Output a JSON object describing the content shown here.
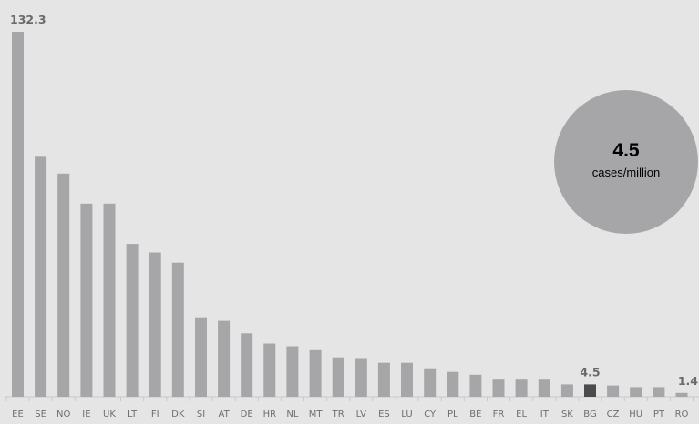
{
  "chart_data": {
    "type": "bar",
    "categories": [
      "EE",
      "SE",
      "NO",
      "IE",
      "UK",
      "LT",
      "FI",
      "DK",
      "SI",
      "AT",
      "DE",
      "HR",
      "NL",
      "MT",
      "TR",
      "LV",
      "ES",
      "LU",
      "CY",
      "PL",
      "BE",
      "FR",
      "EL",
      "IT",
      "SK",
      "BG",
      "CZ",
      "HU",
      "PT",
      "RO"
    ],
    "values": [
      132.3,
      87.0,
      80.9,
      70.0,
      70.0,
      55.4,
      52.3,
      48.6,
      28.8,
      27.5,
      23.0,
      19.3,
      18.3,
      16.9,
      14.3,
      13.7,
      12.3,
      12.3,
      10.0,
      9.0,
      8.0,
      6.2,
      6.2,
      6.2,
      4.5,
      4.5,
      4.1,
      3.5,
      3.5,
      1.4
    ],
    "highlight": "BG",
    "highlight_color": "#4b4b4d",
    "bar_color": "#a6a6a8",
    "value_labels": [
      {
        "category": "EE",
        "text": "132.3"
      },
      {
        "category": "BG",
        "text": "4.5"
      },
      {
        "category": "RO",
        "text": "1.4"
      }
    ],
    "ylim": [
      0,
      132.3
    ],
    "grid": false,
    "title": "",
    "xlabel": "",
    "ylabel": ""
  },
  "callout": {
    "value": "4.5",
    "unit": "cases/million"
  }
}
